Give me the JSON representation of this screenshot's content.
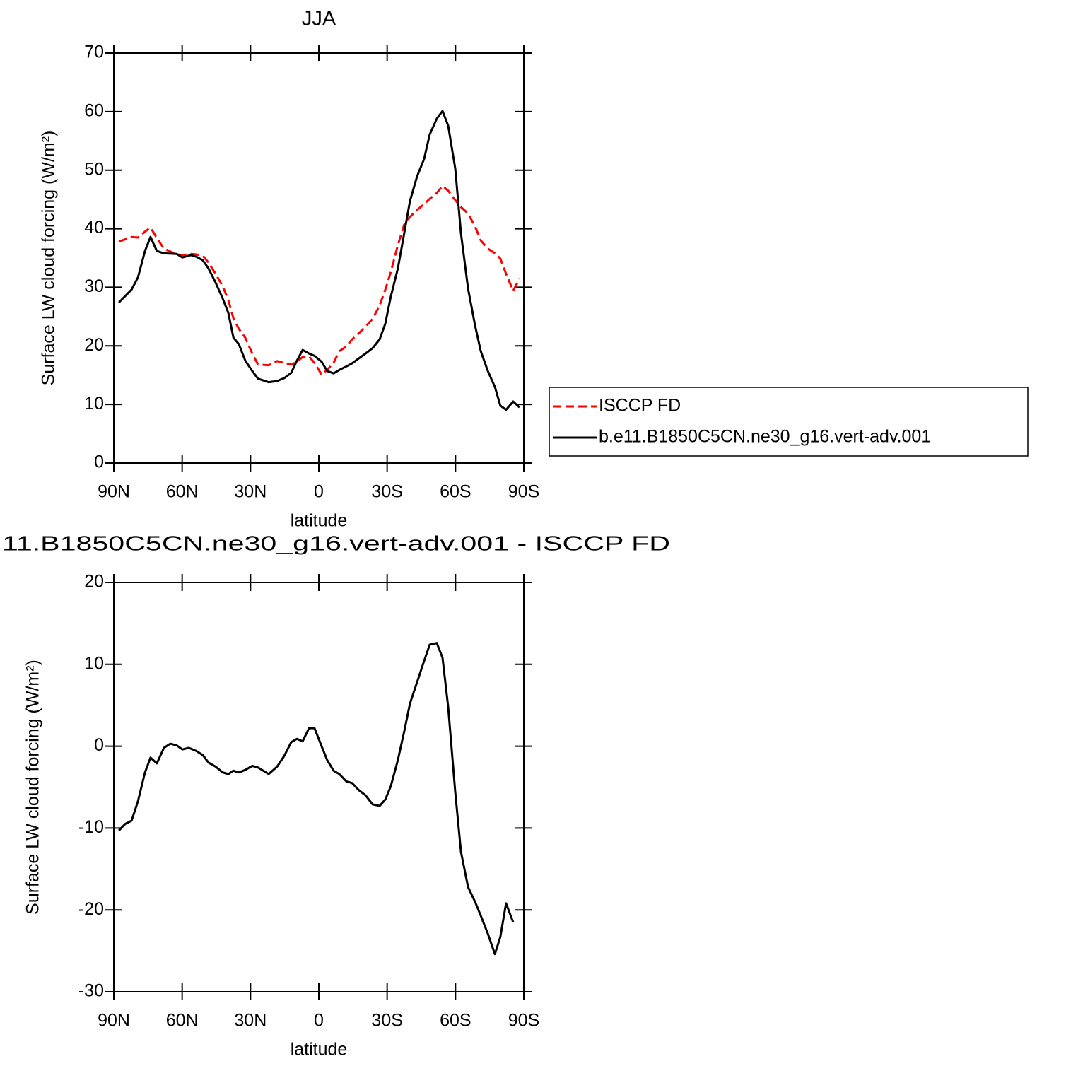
{
  "chart_data": [
    {
      "type": "line",
      "title": "JJA",
      "x_label": "latitude",
      "y_label": "Surface LW cloud forcing (W/m²)",
      "xlim": [
        90,
        -90
      ],
      "xticks": [
        {
          "value": 90,
          "label": "90N"
        },
        {
          "value": 60,
          "label": "60N"
        },
        {
          "value": 30,
          "label": "30N"
        },
        0,
        {
          "value": -30,
          "label": "30S"
        },
        {
          "value": -60,
          "label": "60S"
        },
        {
          "value": -90,
          "label": "90S"
        }
      ],
      "ylim": [
        0,
        70
      ],
      "yticks": [
        0,
        10,
        20,
        30,
        40,
        50,
        60,
        70
      ],
      "legend": "right",
      "x": [
        87.8,
        82.2,
        79.4,
        76.3,
        73.9,
        71.1,
        68.0,
        62.4,
        59.9,
        56.2,
        53.7,
        50.9,
        48.4,
        45.3,
        42.2,
        39.7,
        37.5,
        35.1,
        32.3,
        29.2,
        26.7,
        22.0,
        18.3,
        15.2,
        12.1,
        9.6,
        7.1,
        4.3,
        1.9,
        -1.2,
        -3.7,
        -6.5,
        -9.0,
        -12.1,
        -14.6,
        -17.7,
        -20.5,
        -23.6,
        -26.7,
        -29.2,
        -31.6,
        -34.7,
        -37.5,
        -40.0,
        -43.1,
        -46.2,
        -48.7,
        -51.8,
        -54.3,
        -56.8,
        -59.9,
        -62.4,
        -65.5,
        -68.6,
        -71.1,
        -74.2,
        -77.3,
        -79.7,
        -82.2,
        -85.3,
        -88.1
      ],
      "series": [
        {
          "name": "ISCCP FD",
          "color": "#ff0000",
          "line_style": "dashed",
          "values": [
            37.8,
            38.6,
            38.5,
            39.5,
            40.2,
            38.4,
            36.6,
            35.6,
            35.5,
            35.7,
            35.6,
            35.4,
            34.2,
            32.3,
            30.2,
            27.8,
            24.7,
            22.9,
            21.4,
            18.7,
            16.8,
            16.7,
            17.4,
            17.1,
            16.8,
            17.3,
            18.1,
            18.2,
            17.1,
            15.1,
            15.9,
            17.1,
            19.1,
            19.9,
            21.1,
            22.2,
            23.3,
            24.6,
            26.9,
            29.6,
            32.6,
            37.2,
            40.7,
            42,
            43.2,
            44.2,
            45.1,
            46.1,
            47.3,
            46.5,
            44.9,
            43.7,
            42.6,
            40.4,
            38,
            36.6,
            35.8,
            34.9,
            32.3,
            29.4,
            31.5
          ]
        },
        {
          "name": "b.e11.B1850C5CN.ne30_g16.vert-adv.001",
          "color": "#000000",
          "line_style": "solid",
          "values": [
            27.4,
            29.6,
            31.7,
            36.2,
            38.6,
            36.2,
            35.8,
            35.7,
            35.1,
            35.5,
            35.2,
            34.6,
            33.2,
            30.8,
            28.1,
            25.6,
            21.4,
            20.3,
            17.5,
            15.7,
            14.4,
            13.8,
            14,
            14.5,
            15.4,
            17.5,
            19.3,
            18.7,
            18.3,
            17.3,
            15.7,
            15.3,
            15.9,
            16.5,
            17,
            17.9,
            18.7,
            19.6,
            21.1,
            23.8,
            28.4,
            33.2,
            39.2,
            44.7,
            48.9,
            51.9,
            56.1,
            58.8,
            60.1,
            57.6,
            50.3,
            39.2,
            29.8,
            23.5,
            19.1,
            15.7,
            13,
            9.8,
            9.1,
            10.5,
            9.5
          ]
        }
      ]
    },
    {
      "type": "line",
      "title": "11.B1850C5CN.ne30_g16.vert-adv.001 - ISCCP FD",
      "x_label": "latitude",
      "y_label": "Surface LW cloud forcing (W/m²)",
      "xlim": [
        90,
        -90
      ],
      "xticks": [
        {
          "value": 90,
          "label": "90N"
        },
        {
          "value": 60,
          "label": "60N"
        },
        {
          "value": 30,
          "label": "30N"
        },
        0,
        {
          "value": -30,
          "label": "30S"
        },
        {
          "value": -60,
          "label": "60S"
        },
        {
          "value": -90,
          "label": "90S"
        }
      ],
      "ylim": [
        -30,
        20
      ],
      "yticks": [
        -30,
        -20,
        -10,
        0,
        10,
        20
      ],
      "color": "#000000",
      "x": [
        87.8,
        85.0,
        82.2,
        79.4,
        76.3,
        73.9,
        71.1,
        68.0,
        65.2,
        62.4,
        59.9,
        57.1,
        53.7,
        50.9,
        48.4,
        45.3,
        42.2,
        39.7,
        37.5,
        35.1,
        32.3,
        29.2,
        26.7,
        22.0,
        18.3,
        15.2,
        12.1,
        9.6,
        7.1,
        4.3,
        1.9,
        -1.2,
        -3.7,
        -6.5,
        -9.0,
        -12.1,
        -14.6,
        -17.7,
        -20.5,
        -23.6,
        -26.7,
        -29.2,
        -31.6,
        -34.7,
        -37.5,
        -40.0,
        -43.1,
        -46.2,
        -48.7,
        -51.8,
        -54.3,
        -56.8,
        -59.9,
        -62.4,
        -65.5,
        -68.6,
        -71.1,
        -74.2,
        -77.3,
        -79.7,
        -82.2,
        -85.3
      ],
      "values": [
        -10.3,
        -9.5,
        -9.1,
        -6.7,
        -3.2,
        -1.4,
        -2.1,
        -0.2,
        0.3,
        0.1,
        -0.4,
        -0.2,
        -0.6,
        -1.1,
        -2.0,
        -2.5,
        -3.2,
        -3.4,
        -3.0,
        -3.2,
        -2.9,
        -2.4,
        -2.6,
        -3.4,
        -2.5,
        -1.2,
        0.5,
        0.9,
        0.6,
        2.2,
        2.2,
        0,
        -1.7,
        -3.0,
        -3.4,
        -4.3,
        -4.5,
        -5.4,
        -6.0,
        -7.1,
        -7.3,
        -6.5,
        -4.9,
        -1.7,
        1.8,
        5.2,
        7.8,
        10.4,
        12.4,
        12.6,
        10.8,
        4.8,
        -5.6,
        -12.9,
        -17.2,
        -19.0,
        -20.7,
        -22.9,
        -25.4,
        -23.3,
        -19.2,
        -21.5
      ]
    }
  ]
}
